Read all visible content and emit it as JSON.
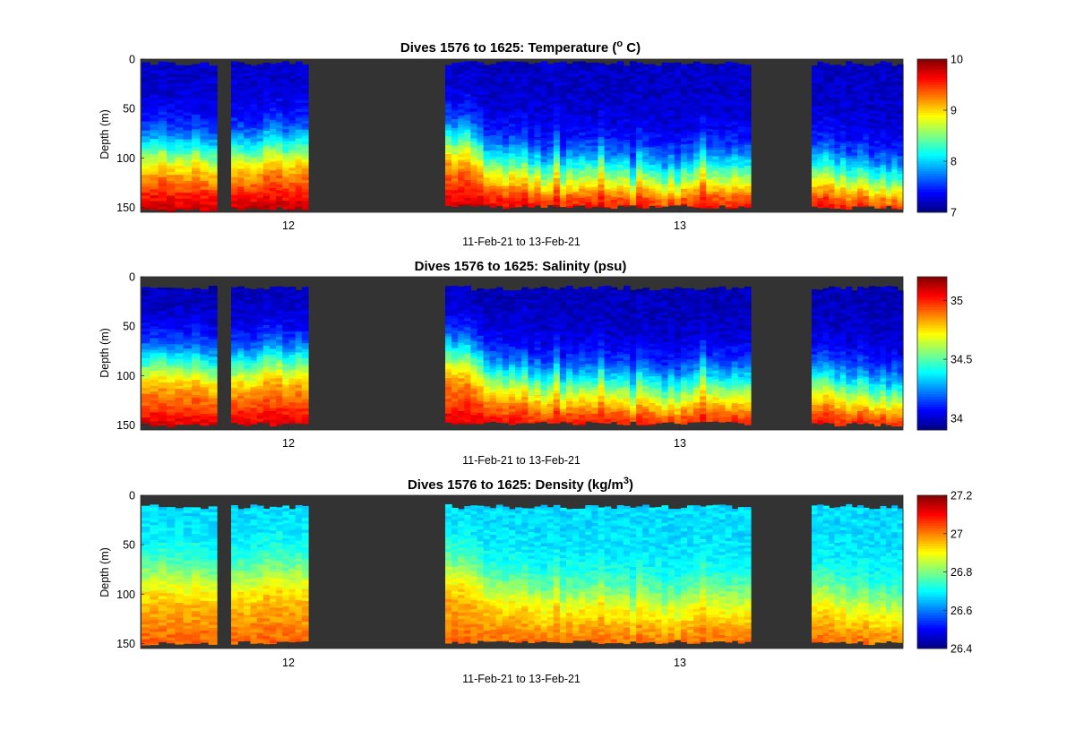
{
  "chart_data": [
    {
      "type": "heatmap",
      "title_text": "Dives 1576 to 1625: Temperature (",
      "title_sup": "o",
      "title_tail": " C)",
      "ylabel": "Depth (m)",
      "xlabel": "11-Feb-21 to 13-Feb-21",
      "x_ticks": [
        "12",
        "13"
      ],
      "y_ticks": [
        "0",
        "50",
        "100",
        "150"
      ],
      "ylim": [
        0,
        155
      ],
      "y_reversed": true,
      "colormap": "jet",
      "clim": [
        7,
        10
      ],
      "colorbar_ticks": [
        "7",
        "8",
        "9",
        "10"
      ],
      "profile": {
        "surface": 7.2,
        "bottom": 9.6,
        "var": 0.12
      },
      "clusters": [
        {
          "thermocline_depth": [
            93,
            92,
            89,
            95,
            94,
            96,
            91,
            96,
            98
          ],
          "bottom_depth": 155,
          "top_depth": 2
        },
        {
          "thermocline_depth": [
            93,
            93,
            95,
            95,
            94,
            86,
            87,
            86,
            93,
            92,
            87,
            89
          ],
          "bottom_depth": 153,
          "top_depth": 2
        },
        {
          "thermocline_depth": [
            81,
            86,
            82,
            80,
            88,
            92,
            104,
            104,
            104,
            108,
            103,
            106,
            102,
            113,
            108,
            118,
            114,
            100,
            118,
            111,
            114,
            111,
            111,
            112,
            102,
            114,
            114,
            113,
            112,
            124,
            107,
            113,
            116,
            117,
            124,
            115,
            124,
            114,
            116,
            111,
            100,
            113,
            111,
            114,
            114,
            111,
            114,
            113
          ],
          "bottom_depth": 151,
          "top_depth": 2
        },
        {
          "thermocline_depth": [
            111,
            110,
            107,
            110,
            117,
            112,
            120,
            119,
            114,
            116,
            123,
            123,
            119,
            126,
            120,
            124
          ],
          "bottom_depth": 152,
          "top_depth": 2
        }
      ]
    },
    {
      "type": "heatmap",
      "title_text": "Dives 1576 to 1625: Salinity (psu)",
      "title_sup": "",
      "title_tail": "",
      "ylabel": "Depth (m)",
      "xlabel": "11-Feb-21 to 13-Feb-21",
      "x_ticks": [
        "12",
        "13"
      ],
      "y_ticks": [
        "0",
        "50",
        "100",
        "150"
      ],
      "ylim": [
        0,
        155
      ],
      "y_reversed": true,
      "colormap": "jet",
      "clim": [
        33.9,
        35.2
      ],
      "colorbar_ticks": [
        "34",
        "34.5",
        "35"
      ],
      "profile": {
        "surface": 33.97,
        "bottom": 35.0,
        "var": 0.05
      },
      "clusters": [
        {
          "thermocline_depth": [
            88,
            86,
            85,
            88,
            87,
            89,
            85,
            90,
            92
          ],
          "bottom_depth": 152,
          "top_depth": 9
        },
        {
          "thermocline_depth": [
            90,
            88,
            92,
            90,
            88,
            81,
            83,
            81,
            88,
            87,
            83,
            85
          ],
          "bottom_depth": 151,
          "top_depth": 9
        },
        {
          "thermocline_depth": [
            76,
            80,
            78,
            77,
            84,
            88,
            98,
            100,
            99,
            104,
            99,
            102,
            98,
            108,
            104,
            112,
            108,
            96,
            113,
            106,
            110,
            106,
            107,
            108,
            98,
            109,
            109,
            108,
            108,
            118,
            103,
            108,
            111,
            112,
            118,
            111,
            118,
            110,
            111,
            107,
            96,
            108,
            106,
            109,
            110,
            107,
            110,
            108
          ],
          "bottom_depth": 150,
          "top_depth": 9
        },
        {
          "thermocline_depth": [
            104,
            104,
            101,
            105,
            111,
            107,
            114,
            113,
            108,
            110,
            117,
            117,
            113,
            120,
            114,
            118
          ],
          "bottom_depth": 151,
          "top_depth": 9
        }
      ]
    },
    {
      "type": "heatmap",
      "title_text": "Dives 1576 to 1625: Density (kg/m",
      "title_sup": "3",
      "title_tail": ")",
      "ylabel": "Depth (m)",
      "xlabel": "11-Feb-21 to 13-Feb-21",
      "x_ticks": [
        "12",
        "13"
      ],
      "y_ticks": [
        "0",
        "50",
        "100",
        "150"
      ],
      "ylim": [
        0,
        155
      ],
      "y_reversed": true,
      "colormap": "jet",
      "clim": [
        26.4,
        27.2
      ],
      "colorbar_ticks": [
        "26.4",
        "26.6",
        "26.8",
        "27",
        "27.2"
      ],
      "profile": {
        "surface": 26.67,
        "bottom": 27.0,
        "var": 0.03
      },
      "clusters": [
        {
          "thermocline_depth": [
            82,
            80,
            79,
            82,
            81,
            83,
            80,
            84,
            86
          ],
          "bottom_depth": 152,
          "top_depth": 9
        },
        {
          "thermocline_depth": [
            84,
            82,
            86,
            84,
            82,
            76,
            78,
            76,
            82,
            81,
            78,
            80
          ],
          "bottom_depth": 151,
          "top_depth": 9
        },
        {
          "thermocline_depth": [
            72,
            76,
            74,
            73,
            80,
            84,
            92,
            94,
            93,
            98,
            93,
            96,
            92,
            102,
            98,
            106,
            102,
            90,
            106,
            100,
            104,
            100,
            101,
            102,
            92,
            103,
            103,
            102,
            102,
            112,
            97,
            102,
            105,
            106,
            112,
            105,
            112,
            104,
            105,
            101,
            90,
            102,
            100,
            103,
            104,
            101,
            104,
            102
          ],
          "bottom_depth": 150,
          "top_depth": 9
        },
        {
          "thermocline_depth": [
            98,
            98,
            95,
            99,
            105,
            101,
            108,
            107,
            102,
            104,
            111,
            111,
            107,
            114,
            108,
            112
          ],
          "bottom_depth": 151,
          "top_depth": 9
        }
      ]
    }
  ]
}
